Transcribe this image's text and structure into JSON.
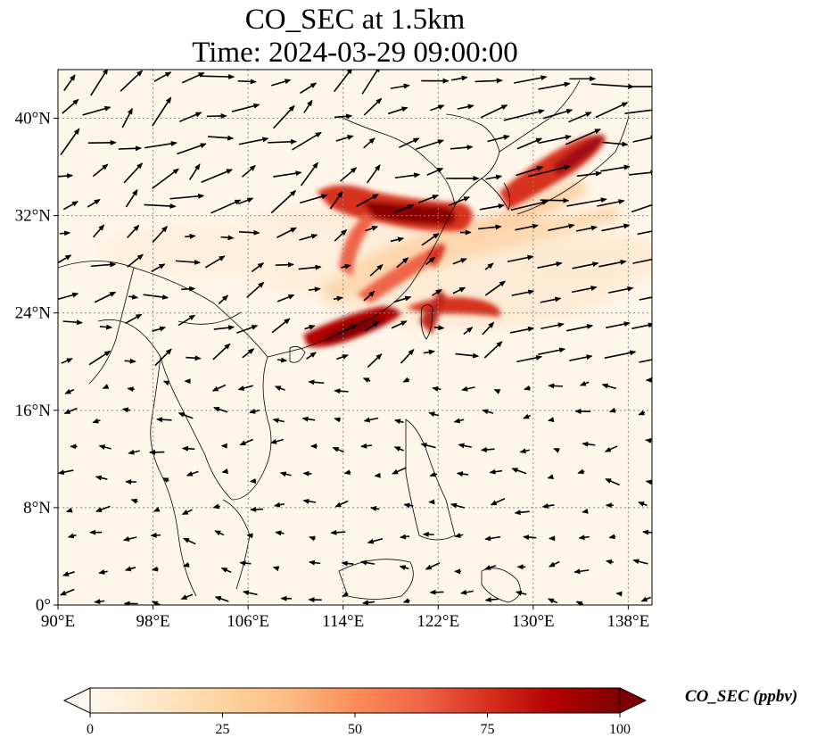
{
  "title_line1": "CO_SEC at 1.5km",
  "title_line2": "Time: 2024-03-29 09:00:00",
  "map": {
    "lon_range": [
      90,
      140
    ],
    "lat_range": [
      0,
      44
    ],
    "lon_ticks": [
      90,
      98,
      106,
      114,
      122,
      130,
      138
    ],
    "lat_ticks": [
      0,
      8,
      16,
      24,
      32,
      40
    ],
    "lon_tick_labels": [
      "90°E",
      "98°E",
      "106°E",
      "114°E",
      "122°E",
      "130°E",
      "138°E"
    ],
    "lat_tick_labels": [
      "0°",
      "8°N",
      "16°N",
      "24°N",
      "32°N",
      "40°N"
    ],
    "gridlines": "dotted",
    "coastlines": true,
    "wind_vectors": true
  },
  "colorbar": {
    "label": "CO_SEC (ppbv)",
    "ticks": [
      0,
      25,
      50,
      75,
      100
    ],
    "tick_labels": [
      "0",
      "25",
      "50",
      "75",
      "100"
    ],
    "range": [
      0,
      100
    ],
    "extend": "both",
    "colormap": "OrRd",
    "colors": [
      "#fff7ec",
      "#fee8c8",
      "#fdd49e",
      "#fdbb84",
      "#fc8d59",
      "#ef6548",
      "#d7301f",
      "#b30000",
      "#7f0000"
    ]
  },
  "chart_data": {
    "type": "heatmap",
    "variable": "CO_SEC",
    "units": "ppbv",
    "level": "1.5km",
    "time": "2024-03-29 09:00:00",
    "xlim": [
      90,
      140
    ],
    "ylim": [
      0,
      44
    ],
    "plumes": [
      {
        "region": "East China / Yellow Sea (lon 114-125, lat 31-34)",
        "value_ppbv": 100
      },
      {
        "region": "Southeast China coast (lon 112-118, lat 22-25)",
        "value_ppbv": 95
      },
      {
        "region": "Taiwan Strait band (lon 118-125, lat 24-26)",
        "value_ppbv": 80
      },
      {
        "region": "Korea - Japan band (lon 126-136, lat 33-40)",
        "value_ppbv": 90
      },
      {
        "region": "Inland China band (lon 114-120, lat 25-32)",
        "value_ppbv": 60
      }
    ]
  }
}
